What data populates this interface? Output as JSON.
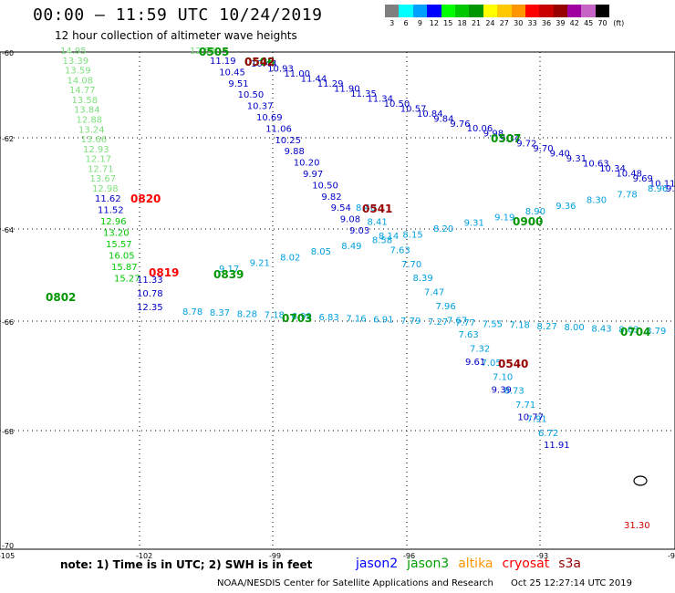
{
  "header": {
    "title": "00:00 – 11:59 UTC 10/24/2019",
    "subtitle": "12 hour collection of altimeter wave heights"
  },
  "legend": {
    "unit": "(ft)",
    "items": [
      {
        "label": "3",
        "color": "#7f7f7f"
      },
      {
        "label": "6",
        "color": "#00ffff"
      },
      {
        "label": "9",
        "color": "#00a0ff"
      },
      {
        "label": "12",
        "color": "#0000ff"
      },
      {
        "label": "15",
        "color": "#00ff00"
      },
      {
        "label": "18",
        "color": "#00c800"
      },
      {
        "label": "21",
        "color": "#009600"
      },
      {
        "label": "24",
        "color": "#ffff00"
      },
      {
        "label": "27",
        "color": "#ffc800"
      },
      {
        "label": "30",
        "color": "#ff9600"
      },
      {
        "label": "33",
        "color": "#ff0000"
      },
      {
        "label": "36",
        "color": "#c80000"
      },
      {
        "label": "39",
        "color": "#960000"
      },
      {
        "label": "42",
        "color": "#a000a0"
      },
      {
        "label": "45",
        "color": "#c864c8"
      },
      {
        "label": "70",
        "color": "#000000"
      }
    ]
  },
  "axes": {
    "lat_labels": [
      "-60",
      "-62",
      "-64",
      "-66",
      "-68",
      "-70"
    ],
    "lon_labels": [
      "-105",
      "-102",
      "-99",
      "-96",
      "-93",
      "-90"
    ]
  },
  "track_times": [
    {
      "text": "0505",
      "color": "#009600"
    },
    {
      "text": "0506",
      "color": "#009600"
    },
    {
      "text": "0542",
      "color": "#960000"
    },
    {
      "text": "0507",
      "color": "#009600"
    },
    {
      "text": "0820",
      "color": "#ff0000"
    },
    {
      "text": "0541",
      "color": "#960000"
    },
    {
      "text": "0900",
      "color": "#009600"
    },
    {
      "text": "0819",
      "color": "#ff0000"
    },
    {
      "text": "0839",
      "color": "#009600"
    },
    {
      "text": "0802",
      "color": "#009600"
    },
    {
      "text": "0703",
      "color": "#009600"
    },
    {
      "text": "0704",
      "color": "#009600"
    },
    {
      "text": "0540",
      "color": "#960000"
    }
  ],
  "tracks": {
    "green_left": {
      "color": "#7fe07f",
      "values": [
        "14.95",
        "13.39",
        "13.59",
        "14.08",
        "14.77",
        "13.58",
        "13.84",
        "12.88",
        "13.24",
        "13.66",
        "12.93",
        "12.17",
        "12.71",
        "13.67",
        "12.98"
      ]
    },
    "mixed_left": {
      "values": [
        "11.62",
        "11.52",
        "12.96",
        "13.20",
        "15.57",
        "16.05",
        "15.87",
        "15.27"
      ]
    },
    "green_top": {
      "color": "#7fe07f",
      "values": [
        "12.54"
      ]
    },
    "blue_col": {
      "color": "#0000c8",
      "values": [
        "11.19",
        "10.45",
        "9.51",
        "10.50",
        "10.37",
        "10.69",
        "11.06",
        "10.25",
        "9.88",
        "10.20",
        "9.97",
        "10.50",
        "9.82",
        "9.54",
        "9.08",
        "9.03"
      ]
    },
    "cyan_col": {
      "color": "#00a0e0",
      "values": [
        "8.40",
        "8.41",
        "8.14",
        "7.63",
        "7.70",
        "8.39",
        "7.47",
        "7.96",
        "7.67",
        "7.63",
        "7.32",
        "7.05",
        "7.10",
        "8.73",
        "7.71",
        "7.91",
        "6.72"
      ]
    },
    "blue_low": {
      "color": "#0000c8",
      "values": [
        "9.61",
        "9.39",
        "10.77",
        "11.91"
      ]
    },
    "blue_diag": {
      "color": "#0000c8",
      "values": [
        "10.44",
        "10.93",
        "11.00",
        "11.44",
        "11.29",
        "11.90",
        "11.35",
        "11.34",
        "10.50",
        "10.57",
        "10.84",
        "9.84",
        "9.76",
        "10.06",
        "9.98",
        "9.34",
        "9.72",
        "9.70",
        "9.40",
        "9.31",
        "10.63",
        "10.34",
        "10.48",
        "9.69",
        "10.11",
        "9.31"
      ]
    },
    "cyan_diag_top": {
      "color": "#00a0e0",
      "values": [
        "8.96",
        "7.78",
        "8.30",
        "9.36",
        "8.90",
        "9.19",
        "9.31",
        "8.20",
        "8.15",
        "8.58",
        "8.49",
        "8.05",
        "8.02",
        "9.21",
        "9.17"
      ]
    },
    "cyan_diag_low": {
      "color": "#00a0e0",
      "values": [
        "8.78",
        "8.37",
        "8.28",
        "7.18",
        "6.99",
        "6.83",
        "7.16",
        "6.91",
        "7.79",
        "7.27",
        "7.77",
        "7.55",
        "7.18",
        "8.27",
        "8.00",
        "8.43",
        "8.63",
        "8.79",
        "10.8"
      ]
    },
    "blue_lowleft": {
      "color": "#0000c8",
      "values": [
        "12.35",
        "10.78",
        "11.33"
      ]
    },
    "black_right": {
      "color": "#cc0000",
      "values": [
        "31.30"
      ]
    }
  },
  "note": "note:  1) Time is in UTC;  2) SWH is in feet",
  "satellites": [
    {
      "name": "jason2",
      "color": "#0000ff"
    },
    {
      "name": "jason3",
      "color": "#00a000"
    },
    {
      "name": "altika",
      "color": "#ff9600"
    },
    {
      "name": "cryosat",
      "color": "#ff0000"
    },
    {
      "name": "s3a",
      "color": "#960000"
    }
  ],
  "footer": {
    "credit": "NOAA/NESDIS Center for Satellite Applications and Research",
    "timestamp": "Oct 25 12:27:14 UTC 2019"
  }
}
